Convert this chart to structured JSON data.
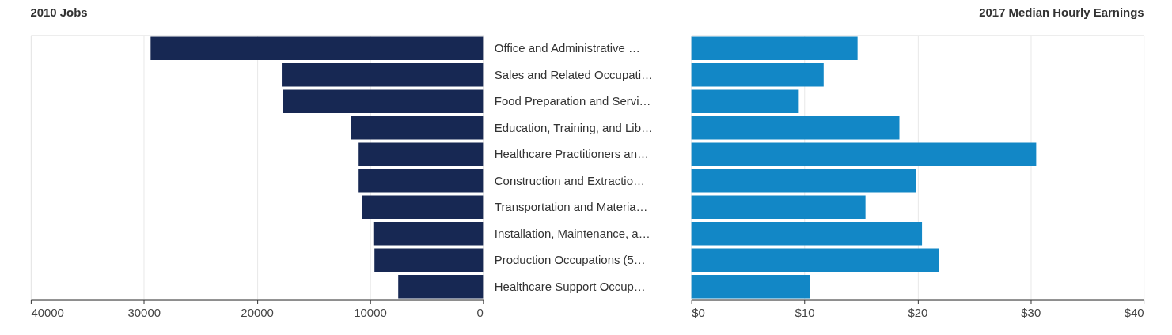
{
  "chart_data": [
    {
      "type": "bar",
      "orientation": "horizontal",
      "title": "2010 Jobs",
      "categories": [
        "Office and Administrative …",
        "Sales and Related Occupati…",
        "Food Preparation and Servi…",
        "Education, Training, and Lib…",
        "Healthcare Practitioners an…",
        "Construction and Extractio…",
        "Transportation and Materia…",
        "Installation, Maintenance, a…",
        "Production Occupations (5…",
        "Healthcare Support Occup…"
      ],
      "values": [
        29400,
        17800,
        17700,
        11700,
        11000,
        11000,
        10700,
        9700,
        9600,
        7500
      ],
      "color": "#172853",
      "xlim": [
        40000,
        0
      ],
      "xticks": [
        40000,
        30000,
        20000,
        10000,
        0
      ],
      "grid": "x"
    },
    {
      "type": "bar",
      "orientation": "horizontal",
      "title": "2017 Median Hourly Earnings",
      "values": [
        14.7,
        11.7,
        9.5,
        18.4,
        30.5,
        19.9,
        15.4,
        20.4,
        21.9,
        10.5
      ],
      "color": "#1287c6",
      "xlim": [
        0,
        40
      ],
      "xticks": [
        {
          "value": 0,
          "label": "$0"
        },
        {
          "value": 10,
          "label": "$10"
        },
        {
          "value": 20,
          "label": "$20"
        },
        {
          "value": 30,
          "label": "$30"
        },
        {
          "value": 40,
          "label": "$40"
        }
      ],
      "grid": "x",
      "tick_labels": "x"
    }
  ]
}
